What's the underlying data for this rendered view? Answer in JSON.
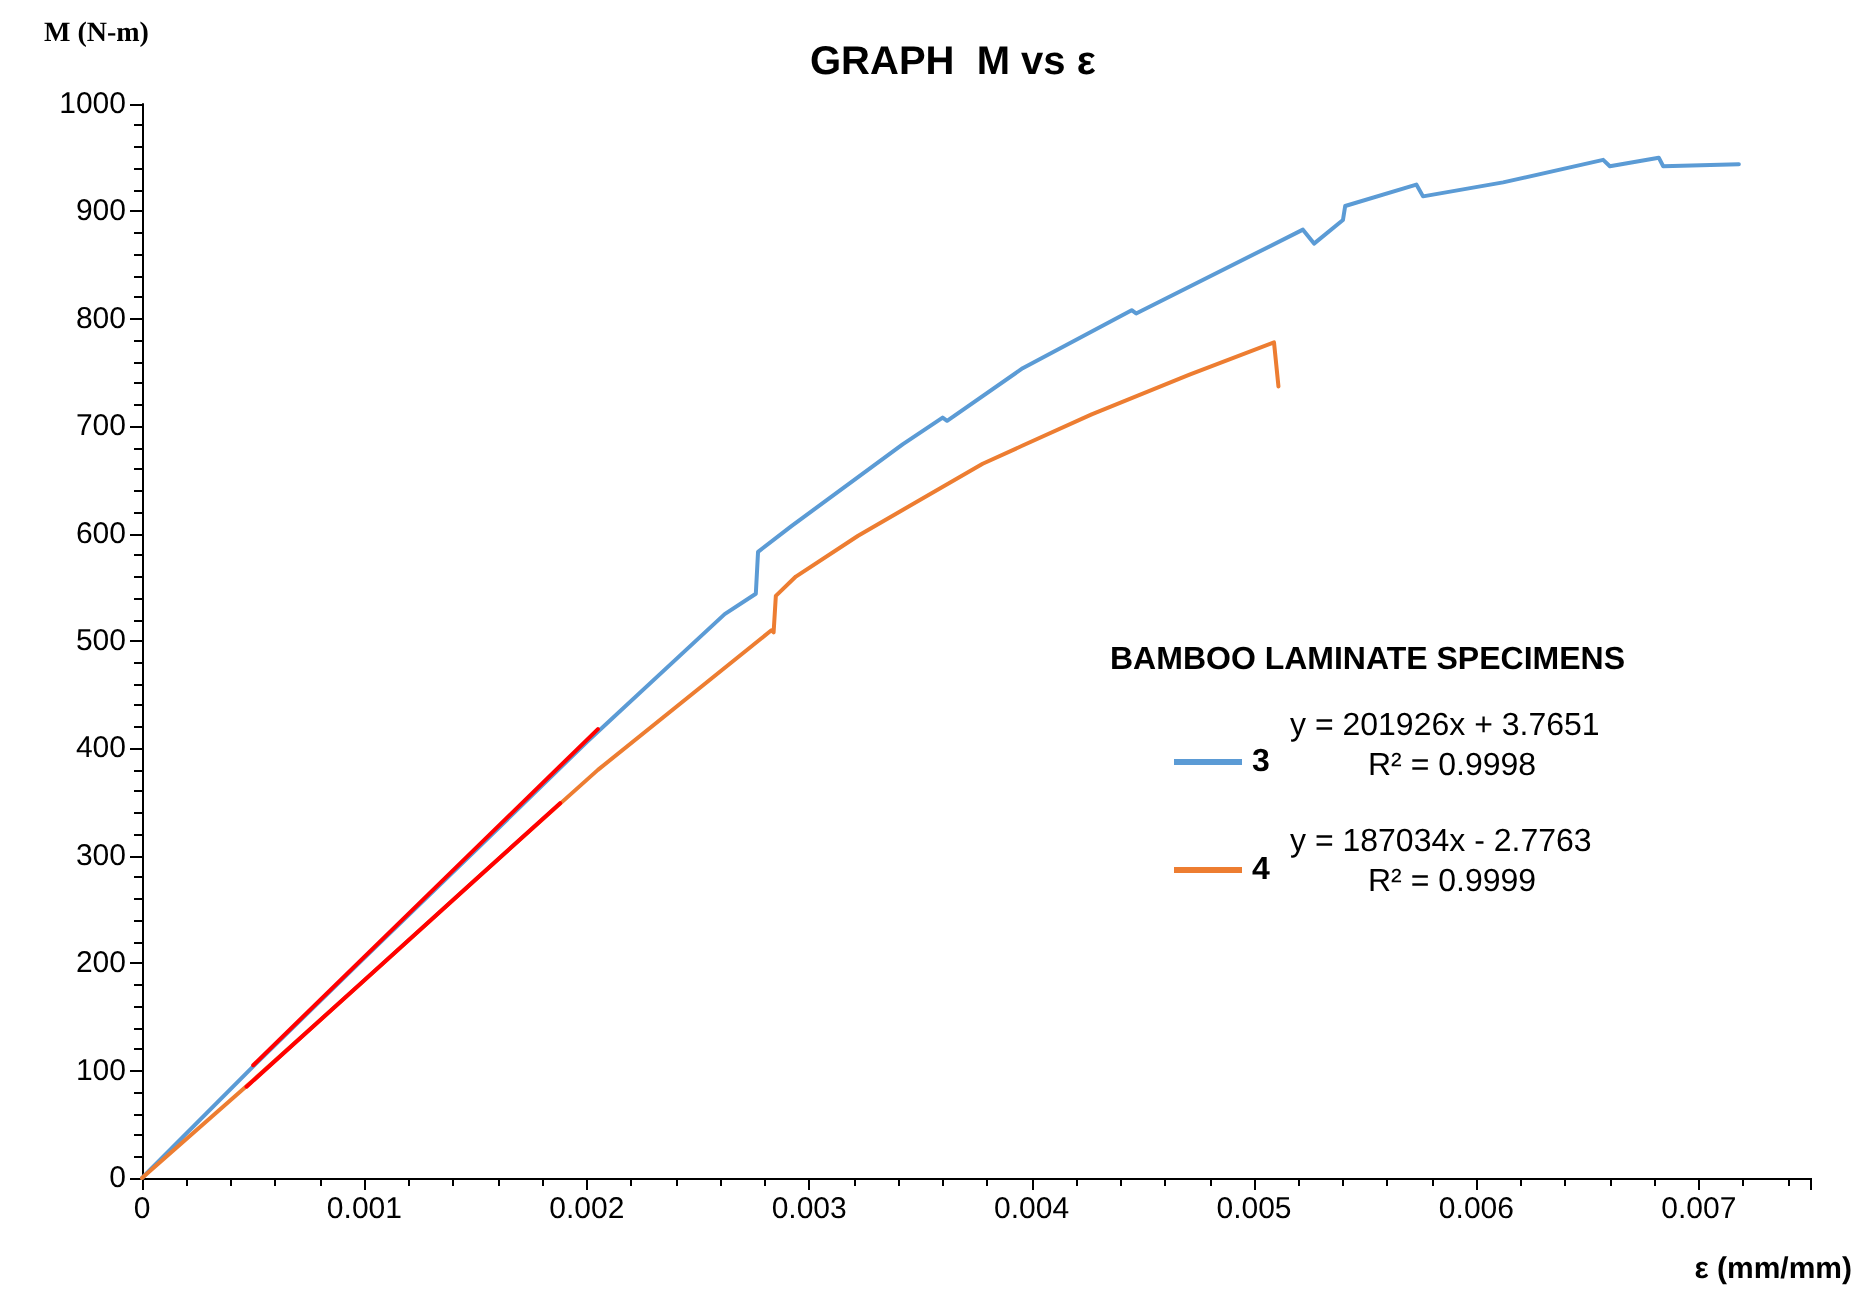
{
  "chart_data": {
    "type": "line",
    "title": "GRAPH  M vs ε",
    "xlabel": "ε (mm/mm)",
    "ylabel": "M (N-m)",
    "legend_title": "BAMBOO LAMINATE SPECIMENS",
    "xlim": [
      0,
      0.0075
    ],
    "xticks": [
      0,
      0.001,
      0.002,
      0.003,
      0.004,
      0.005,
      0.006,
      0.007
    ],
    "ylim": [
      0,
      1000
    ],
    "yticks": [
      0,
      100,
      200,
      300,
      400,
      500,
      600,
      700,
      800,
      900,
      1000
    ],
    "grid": false,
    "legend": "right",
    "marker": "none",
    "line_style": "solid",
    "series": [
      {
        "name": "3",
        "color": "#5b9bd5",
        "x": [
          0,
          0.0005,
          0.001,
          0.0015,
          0.002,
          0.00262,
          0.00276,
          0.00277,
          0.00292,
          0.00342,
          0.0036,
          0.00362,
          0.00396,
          0.00445,
          0.00447,
          0.00522,
          0.00527,
          0.0054,
          0.00541,
          0.00573,
          0.00576,
          0.00612,
          0.00657,
          0.0066,
          0.00682,
          0.00684,
          0.00718
        ],
        "values": [
          0,
          104,
          205,
          305,
          406,
          525,
          544,
          583,
          607,
          683,
          708,
          705,
          754,
          808,
          805,
          883,
          870,
          892,
          905,
          925,
          914,
          927,
          948,
          942,
          950,
          942,
          944
        ]
      },
      {
        "name": "4",
        "color": "#ed7d31",
        "x": [
          0,
          0.0005,
          0.001,
          0.0015,
          0.00205,
          0.00283,
          0.00284,
          0.00285,
          0.00294,
          0.00322,
          0.00342,
          0.00378,
          0.00396,
          0.00427,
          0.00471,
          0.00509,
          0.00511
        ],
        "values": [
          0,
          91,
          184,
          278,
          380,
          510,
          508,
          542,
          560,
          598,
          622,
          665,
          682,
          711,
          748,
          778,
          737
        ]
      },
      {
        "type": "line",
        "color": "#ff0000",
        "x": [
          0.0005,
          0.00205
        ],
        "values": [
          105,
          418
        ]
      },
      {
        "type": "line",
        "color": "#ff0000",
        "x": [
          0.00047,
          0.00188
        ],
        "values": [
          85,
          349
        ]
      }
    ],
    "annotations": [
      "y = 201926x + 3.7651",
      "R² = 0.9998",
      "y = 187034x - 2.7763",
      "R² = 0.9999"
    ]
  }
}
